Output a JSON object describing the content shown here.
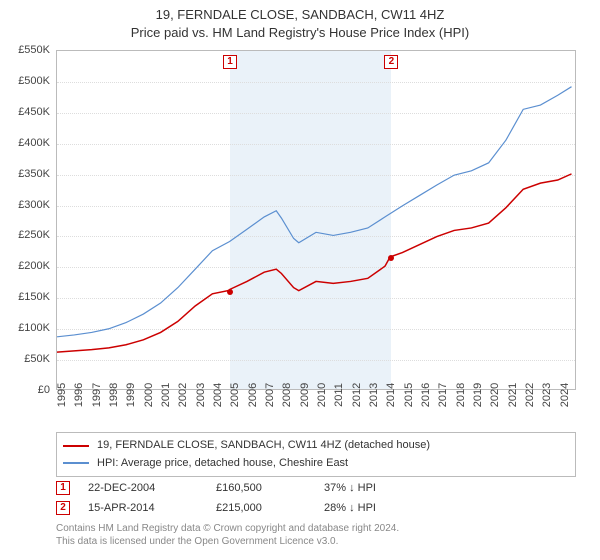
{
  "title": {
    "line1": "19, FERNDALE CLOSE, SANDBACH, CW11 4HZ",
    "line2": "Price paid vs. HM Land Registry's House Price Index (HPI)",
    "fontsize": 13,
    "color": "#333333"
  },
  "chart": {
    "type": "line",
    "background_color": "#ffffff",
    "grid_color": "#dddddd",
    "border_color": "#bbbbbb",
    "x_range": [
      1995,
      2025
    ],
    "y_range": [
      0,
      550000
    ],
    "y_ticks": [
      0,
      50000,
      100000,
      150000,
      200000,
      250000,
      300000,
      350000,
      400000,
      450000,
      500000,
      550000
    ],
    "y_tick_labels": [
      "£0",
      "£50K",
      "£100K",
      "£150K",
      "£200K",
      "£250K",
      "£300K",
      "£350K",
      "£400K",
      "£450K",
      "£500K",
      "£550K"
    ],
    "x_ticks": [
      1995,
      1996,
      1997,
      1998,
      1999,
      2000,
      2001,
      2002,
      2003,
      2004,
      2005,
      2006,
      2007,
      2008,
      2009,
      2010,
      2011,
      2012,
      2013,
      2014,
      2015,
      2016,
      2017,
      2018,
      2019,
      2020,
      2021,
      2022,
      2023,
      2024
    ],
    "tick_fontsize": 11,
    "shaded_region": {
      "x_start": 2004.98,
      "x_end": 2014.29,
      "color": "#eaf2f9"
    },
    "markers": [
      {
        "label": "1",
        "x": 2004.98
      },
      {
        "label": "2",
        "x": 2014.29
      }
    ],
    "series": [
      {
        "name": "price_paid",
        "label": "19, FERNDALE CLOSE, SANDBACH, CW11 4HZ (detached house)",
        "color": "#cc0000",
        "line_width": 1.5,
        "points": [
          [
            1995,
            60000
          ],
          [
            1996,
            62000
          ],
          [
            1997,
            64000
          ],
          [
            1998,
            67000
          ],
          [
            1999,
            72000
          ],
          [
            2000,
            80000
          ],
          [
            2001,
            92000
          ],
          [
            2002,
            110000
          ],
          [
            2003,
            135000
          ],
          [
            2004,
            155000
          ],
          [
            2004.98,
            160500
          ],
          [
            2005,
            162000
          ],
          [
            2006,
            175000
          ],
          [
            2007,
            190000
          ],
          [
            2007.7,
            195000
          ],
          [
            2008,
            188000
          ],
          [
            2008.7,
            165000
          ],
          [
            2009,
            160000
          ],
          [
            2010,
            175000
          ],
          [
            2011,
            172000
          ],
          [
            2012,
            175000
          ],
          [
            2013,
            180000
          ],
          [
            2014,
            200000
          ],
          [
            2014.29,
            215000
          ],
          [
            2015,
            222000
          ],
          [
            2016,
            235000
          ],
          [
            2017,
            248000
          ],
          [
            2018,
            258000
          ],
          [
            2019,
            262000
          ],
          [
            2020,
            270000
          ],
          [
            2021,
            295000
          ],
          [
            2022,
            325000
          ],
          [
            2023,
            335000
          ],
          [
            2024,
            340000
          ],
          [
            2024.8,
            350000
          ]
        ],
        "sale_points": [
          {
            "x": 2004.98,
            "y": 160500
          },
          {
            "x": 2014.29,
            "y": 215000
          }
        ]
      },
      {
        "name": "hpi",
        "label": "HPI: Average price, detached house, Cheshire East",
        "color": "#5b8fd0",
        "line_width": 1.2,
        "points": [
          [
            1995,
            85000
          ],
          [
            1996,
            88000
          ],
          [
            1997,
            92000
          ],
          [
            1998,
            98000
          ],
          [
            1999,
            108000
          ],
          [
            2000,
            122000
          ],
          [
            2001,
            140000
          ],
          [
            2002,
            165000
          ],
          [
            2003,
            195000
          ],
          [
            2004,
            225000
          ],
          [
            2005,
            240000
          ],
          [
            2006,
            260000
          ],
          [
            2007,
            280000
          ],
          [
            2007.7,
            290000
          ],
          [
            2008,
            278000
          ],
          [
            2008.7,
            245000
          ],
          [
            2009,
            238000
          ],
          [
            2010,
            255000
          ],
          [
            2011,
            250000
          ],
          [
            2012,
            255000
          ],
          [
            2013,
            262000
          ],
          [
            2014,
            280000
          ],
          [
            2015,
            298000
          ],
          [
            2016,
            315000
          ],
          [
            2017,
            332000
          ],
          [
            2018,
            348000
          ],
          [
            2019,
            355000
          ],
          [
            2020,
            368000
          ],
          [
            2021,
            405000
          ],
          [
            2022,
            455000
          ],
          [
            2023,
            462000
          ],
          [
            2024,
            478000
          ],
          [
            2024.8,
            492000
          ]
        ]
      }
    ]
  },
  "legend": {
    "border_color": "#bbbbbb",
    "fontsize": 11,
    "items": [
      {
        "color": "#cc0000",
        "label": "19, FERNDALE CLOSE, SANDBACH, CW11 4HZ (detached house)"
      },
      {
        "color": "#5b8fd0",
        "label": "HPI: Average price, detached house, Cheshire East"
      }
    ]
  },
  "sales": [
    {
      "marker": "1",
      "date": "22-DEC-2004",
      "price": "£160,500",
      "hpi_delta": "37% ↓ HPI"
    },
    {
      "marker": "2",
      "date": "15-APR-2014",
      "price": "£215,000",
      "hpi_delta": "28% ↓ HPI"
    }
  ],
  "footer": {
    "line1": "Contains HM Land Registry data © Crown copyright and database right 2024.",
    "line2": "This data is licensed under the Open Government Licence v3.0.",
    "color": "#888888",
    "fontsize": 10
  }
}
